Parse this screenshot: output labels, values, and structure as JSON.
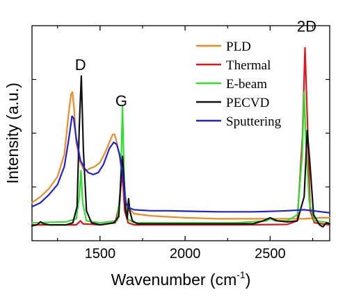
{
  "chart_data": {
    "type": "line",
    "xlabel": "Wavenumber (cm",
    "xlabel_sup": "-1",
    "xlabel_close": ")",
    "ylabel": "Intensity (a.u.)",
    "xlim": [
      1100,
      2850
    ],
    "ylim": [
      0,
      1.1
    ],
    "x_ticks": [
      1500,
      2000,
      2500
    ],
    "x_tick_labels": [
      "1500",
      "2000",
      "2500"
    ],
    "grid": false,
    "legend_position": "top-right",
    "annotations": [
      {
        "text": "D",
        "x": 1385,
        "y": 0.78
      },
      {
        "text": "G",
        "x": 1625,
        "y": 0.6
      },
      {
        "text": "2D",
        "x": 2715,
        "y": 0.97
      }
    ],
    "series": [
      {
        "name": "PLD",
        "color": "#f08a1e",
        "points": [
          [
            1100,
            0.12
          ],
          [
            1150,
            0.15
          ],
          [
            1200,
            0.19
          ],
          [
            1250,
            0.25
          ],
          [
            1290,
            0.36
          ],
          [
            1315,
            0.56
          ],
          [
            1330,
            0.66
          ],
          [
            1338,
            0.67
          ],
          [
            1348,
            0.58
          ],
          [
            1360,
            0.42
          ],
          [
            1380,
            0.33
          ],
          [
            1400,
            0.29
          ],
          [
            1420,
            0.28
          ],
          [
            1440,
            0.29
          ],
          [
            1470,
            0.3
          ],
          [
            1500,
            0.32
          ],
          [
            1530,
            0.37
          ],
          [
            1560,
            0.43
          ],
          [
            1575,
            0.46
          ],
          [
            1585,
            0.46
          ],
          [
            1595,
            0.43
          ],
          [
            1615,
            0.35
          ],
          [
            1635,
            0.22
          ],
          [
            1660,
            0.1
          ],
          [
            1700,
            0.065
          ],
          [
            1800,
            0.055
          ],
          [
            1900,
            0.05
          ],
          [
            2000,
            0.045
          ],
          [
            2200,
            0.04
          ],
          [
            2400,
            0.04
          ],
          [
            2500,
            0.04
          ],
          [
            2600,
            0.04
          ],
          [
            2700,
            0.04
          ],
          [
            2800,
            0.045
          ],
          [
            2850,
            0.045
          ]
        ]
      },
      {
        "name": "Thermal",
        "color": "#e8111b",
        "points": [
          [
            1100,
            0.01
          ],
          [
            1300,
            0.01
          ],
          [
            1360,
            0.01
          ],
          [
            1385,
            0.03
          ],
          [
            1400,
            0.015
          ],
          [
            1500,
            0.01
          ],
          [
            1590,
            0.02
          ],
          [
            1615,
            0.12
          ],
          [
            1630,
            0.28
          ],
          [
            1645,
            0.08
          ],
          [
            1665,
            0.02
          ],
          [
            1700,
            0.01
          ],
          [
            2000,
            0.01
          ],
          [
            2300,
            0.01
          ],
          [
            2600,
            0.012
          ],
          [
            2660,
            0.03
          ],
          [
            2690,
            0.45
          ],
          [
            2705,
            0.89
          ],
          [
            2718,
            0.55
          ],
          [
            2735,
            0.08
          ],
          [
            2760,
            0.02
          ],
          [
            2850,
            0.01
          ]
        ]
      },
      {
        "name": "E-beam",
        "color": "#2de02c",
        "points": [
          [
            1100,
            0.02
          ],
          [
            1300,
            0.025
          ],
          [
            1360,
            0.04
          ],
          [
            1378,
            0.15
          ],
          [
            1388,
            0.28
          ],
          [
            1398,
            0.12
          ],
          [
            1420,
            0.03
          ],
          [
            1500,
            0.02
          ],
          [
            1600,
            0.03
          ],
          [
            1620,
            0.18
          ],
          [
            1632,
            0.6
          ],
          [
            1642,
            0.22
          ],
          [
            1660,
            0.04
          ],
          [
            1700,
            0.02
          ],
          [
            1800,
            0.02
          ],
          [
            2000,
            0.02
          ],
          [
            2300,
            0.02
          ],
          [
            2480,
            0.03
          ],
          [
            2500,
            0.04
          ],
          [
            2530,
            0.03
          ],
          [
            2600,
            0.03
          ],
          [
            2660,
            0.06
          ],
          [
            2688,
            0.35
          ],
          [
            2700,
            0.67
          ],
          [
            2710,
            0.42
          ],
          [
            2730,
            0.12
          ],
          [
            2760,
            0.03
          ],
          [
            2850,
            0.02
          ]
        ]
      },
      {
        "name": "PECVD",
        "color": "#111111",
        "points": [
          [
            1100,
            0.005
          ],
          [
            1130,
            0.01
          ],
          [
            1150,
            0.025
          ],
          [
            1170,
            0.015
          ],
          [
            1200,
            0.01
          ],
          [
            1300,
            0.01
          ],
          [
            1340,
            0.02
          ],
          [
            1365,
            0.1
          ],
          [
            1378,
            0.5
          ],
          [
            1390,
            0.75
          ],
          [
            1402,
            0.38
          ],
          [
            1420,
            0.08
          ],
          [
            1450,
            0.02
          ],
          [
            1500,
            0.01
          ],
          [
            1580,
            0.02
          ],
          [
            1610,
            0.05
          ],
          [
            1625,
            0.28
          ],
          [
            1632,
            0.35
          ],
          [
            1640,
            0.25
          ],
          [
            1650,
            0.09
          ],
          [
            1660,
            0.04
          ],
          [
            1668,
            0.14
          ],
          [
            1675,
            0.08
          ],
          [
            1690,
            0.03
          ],
          [
            1720,
            0.015
          ],
          [
            1800,
            0.015
          ],
          [
            1900,
            0.015
          ],
          [
            2000,
            0.015
          ],
          [
            2200,
            0.015
          ],
          [
            2400,
            0.015
          ],
          [
            2460,
            0.03
          ],
          [
            2500,
            0.045
          ],
          [
            2540,
            0.03
          ],
          [
            2600,
            0.025
          ],
          [
            2660,
            0.03
          ],
          [
            2700,
            0.15
          ],
          [
            2718,
            0.48
          ],
          [
            2735,
            0.3
          ],
          [
            2755,
            0.06
          ],
          [
            2790,
            0.01
          ],
          [
            2810,
            0.0
          ],
          [
            2830,
            0.02
          ],
          [
            2850,
            0.015
          ]
        ]
      },
      {
        "name": "Sputtering",
        "color": "#1f1fe0",
        "points": [
          [
            1100,
            0.1
          ],
          [
            1150,
            0.12
          ],
          [
            1200,
            0.16
          ],
          [
            1250,
            0.21
          ],
          [
            1290,
            0.3
          ],
          [
            1315,
            0.43
          ],
          [
            1335,
            0.55
          ],
          [
            1345,
            0.54
          ],
          [
            1360,
            0.44
          ],
          [
            1385,
            0.33
          ],
          [
            1410,
            0.29
          ],
          [
            1430,
            0.27
          ],
          [
            1460,
            0.26
          ],
          [
            1490,
            0.27
          ],
          [
            1520,
            0.31
          ],
          [
            1555,
            0.39
          ],
          [
            1580,
            0.42
          ],
          [
            1598,
            0.41
          ],
          [
            1615,
            0.36
          ],
          [
            1632,
            0.26
          ],
          [
            1650,
            0.12
          ],
          [
            1670,
            0.095
          ],
          [
            1700,
            0.085
          ],
          [
            1800,
            0.08
          ],
          [
            1900,
            0.08
          ],
          [
            2000,
            0.078
          ],
          [
            2200,
            0.075
          ],
          [
            2400,
            0.075
          ],
          [
            2500,
            0.077
          ],
          [
            2600,
            0.08
          ],
          [
            2700,
            0.085
          ],
          [
            2750,
            0.08
          ],
          [
            2800,
            0.075
          ],
          [
            2850,
            0.07
          ]
        ]
      }
    ]
  }
}
